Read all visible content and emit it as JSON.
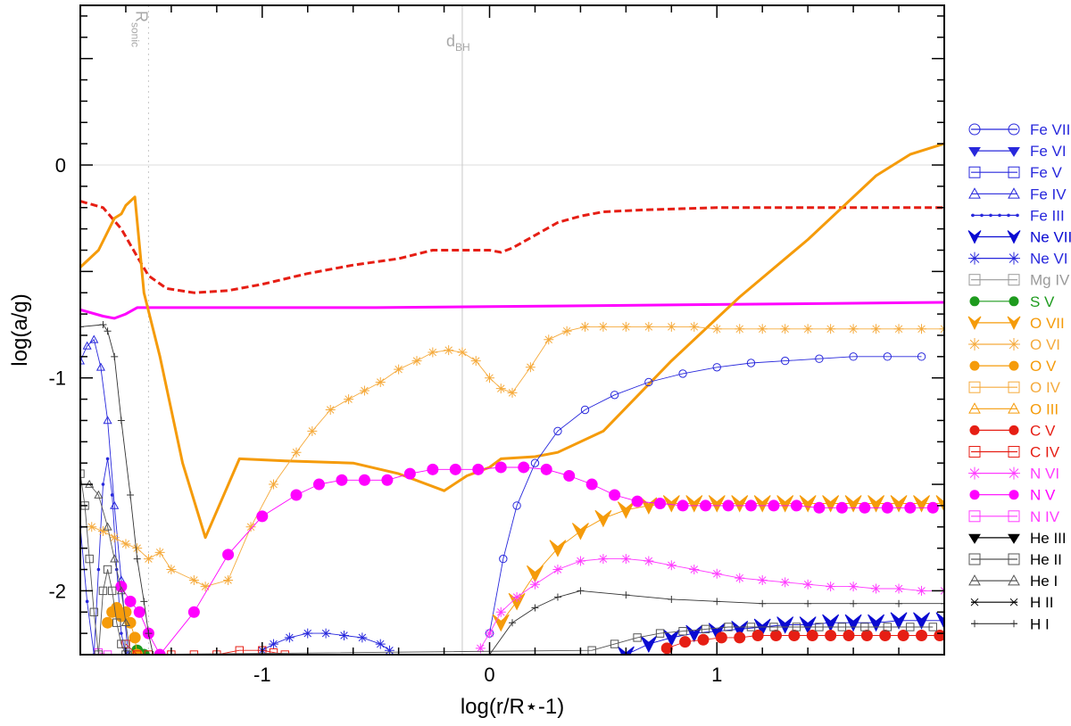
{
  "chart_data": {
    "type": "line",
    "xlabel": "log(r/R⋆-1)",
    "ylabel": "log(a/g)",
    "xlim": [
      -1.8,
      2.0
    ],
    "ylim": [
      -2.3,
      0.75
    ],
    "x_ticks": [
      -1,
      0,
      1
    ],
    "x_tick_labels": [
      "-1",
      "0",
      "1"
    ],
    "y_ticks": [
      -2,
      -1,
      0
    ],
    "y_tick_labels": [
      "-2",
      "-1",
      "0"
    ],
    "grid": false,
    "legend_position": "right",
    "annotations": [
      {
        "main": "R",
        "sub": "sonic",
        "x": -1.5,
        "style": "dotted",
        "rotated": true
      },
      {
        "main": "d",
        "sub": "BH",
        "x": -0.12,
        "style": "solid",
        "rotated": false
      }
    ],
    "series": [
      {
        "color": "#e61e14",
        "dash": "dashed",
        "marker": "none",
        "x": [
          -1.8,
          -1.7,
          -1.62,
          -1.55,
          -1.5,
          -1.42,
          -1.3,
          -1.15,
          -1.0,
          -0.8,
          -0.6,
          -0.4,
          -0.25,
          -0.1,
          0.0,
          0.05,
          0.1,
          0.2,
          0.3,
          0.4,
          0.5,
          0.7,
          1.0,
          1.3,
          1.6,
          2.0
        ],
        "y": [
          -0.17,
          -0.2,
          -0.3,
          -0.43,
          -0.52,
          -0.58,
          -0.6,
          -0.59,
          -0.56,
          -0.51,
          -0.47,
          -0.44,
          -0.4,
          -0.4,
          -0.4,
          -0.41,
          -0.39,
          -0.33,
          -0.27,
          -0.24,
          -0.22,
          -0.21,
          -0.2,
          -0.2,
          -0.2,
          -0.2
        ]
      },
      {
        "color": "#ff00ff",
        "dash": "solid",
        "marker": "none",
        "x": [
          -1.8,
          -1.7,
          -1.65,
          -1.6,
          -1.55,
          -1.4,
          -1.0,
          -0.5,
          0.0,
          0.5,
          1.0,
          1.5,
          2.0
        ],
        "y": [
          -0.68,
          -0.71,
          -0.72,
          -0.7,
          -0.67,
          -0.67,
          -0.67,
          -0.67,
          -0.665,
          -0.66,
          -0.655,
          -0.65,
          -0.645
        ]
      },
      {
        "color": "#f59b0a",
        "dash": "solid",
        "marker": "none",
        "x": [
          -1.8,
          -1.72,
          -1.65,
          -1.62,
          -1.6,
          -1.58,
          -1.56,
          -1.52,
          -1.45,
          -1.35,
          -1.25,
          -1.1,
          -0.9,
          -0.6,
          -0.4,
          -0.2,
          -0.1,
          0.0,
          0.05,
          0.2,
          0.3,
          0.5,
          0.8,
          1.1,
          1.4,
          1.7,
          1.85,
          2.0
        ],
        "y": [
          -0.48,
          -0.4,
          -0.25,
          -0.23,
          -0.19,
          -0.17,
          -0.15,
          -0.6,
          -0.9,
          -1.4,
          -1.75,
          -1.38,
          -1.39,
          -1.4,
          -1.45,
          -1.53,
          -1.46,
          -1.42,
          -1.38,
          -1.37,
          -1.35,
          -1.25,
          -0.92,
          -0.62,
          -0.35,
          -0.05,
          0.05,
          0.1
        ]
      },
      {
        "name": "Fe VII",
        "color": "#2828dc",
        "dash": "solid",
        "marker": "circle",
        "x": [
          0.0,
          0.06,
          0.12,
          0.2,
          0.3,
          0.42,
          0.55,
          0.7,
          0.85,
          1.0,
          1.15,
          1.3,
          1.45,
          1.6,
          1.75,
          1.9
        ],
        "y": [
          -2.2,
          -1.85,
          -1.6,
          -1.4,
          -1.25,
          -1.15,
          -1.08,
          -1.02,
          -0.98,
          -0.95,
          -0.93,
          -0.92,
          -0.91,
          -0.9,
          -0.9,
          -0.9
        ]
      },
      {
        "name": "Fe VI",
        "color": "#2828dc",
        "dash": "solid",
        "marker": "tri-down",
        "x": [],
        "y": []
      },
      {
        "name": "Fe V",
        "color": "#2828dc",
        "dash": "solid",
        "marker": "square",
        "x": [],
        "y": []
      },
      {
        "name": "Fe IV",
        "color": "#2828dc",
        "dash": "solid",
        "marker": "tri-up",
        "x": [
          -1.8,
          -1.77,
          -1.74,
          -1.71,
          -1.68,
          -1.65,
          -1.62,
          -1.59
        ],
        "y": [
          -0.92,
          -0.85,
          -0.82,
          -0.95,
          -1.2,
          -1.6,
          -1.95,
          -2.3
        ]
      },
      {
        "name": "Fe III",
        "color": "#2828dc",
        "dash": "solid",
        "marker": "dot",
        "x": [
          -1.8,
          -1.77,
          -1.74,
          -1.72,
          -1.7,
          -1.68,
          -1.66,
          -1.64,
          -1.62,
          -1.6
        ],
        "y": [
          -1.7,
          -2.05,
          -2.3,
          -1.9,
          -1.5,
          -1.38,
          -1.55,
          -1.9,
          -2.2,
          -2.3
        ]
      },
      {
        "name": "Ne VII",
        "color": "#0a0ad2",
        "dash": "solid",
        "marker": "arrow",
        "x": [
          0.6,
          0.7,
          0.8,
          0.9,
          1.0,
          1.1,
          1.2,
          1.3,
          1.4,
          1.5,
          1.6,
          1.7,
          1.8,
          1.9,
          2.0
        ],
        "y": [
          -2.3,
          -2.25,
          -2.22,
          -2.2,
          -2.19,
          -2.18,
          -2.17,
          -2.16,
          -2.16,
          -2.15,
          -2.15,
          -2.15,
          -2.14,
          -2.14,
          -2.14
        ]
      },
      {
        "name": "Ne VI",
        "color": "#2828dc",
        "dash": "solid",
        "marker": "asterisk",
        "x": [
          -1.0,
          -0.95,
          -0.88,
          -0.8,
          -0.72,
          -0.64,
          -0.56,
          -0.48,
          -0.44
        ],
        "y": [
          -2.28,
          -2.25,
          -2.22,
          -2.2,
          -2.2,
          -2.21,
          -2.22,
          -2.25,
          -2.28
        ]
      },
      {
        "name": "Mg IV",
        "color": "#9a9a9a",
        "dash": "solid",
        "marker": "square",
        "x": [],
        "y": []
      },
      {
        "name": "S V",
        "color": "#1e9b1e",
        "dash": "solid",
        "marker": "circle-filled",
        "x": [
          -1.55,
          -1.52
        ],
        "y": [
          -2.28,
          -2.3
        ]
      },
      {
        "name": "O VII",
        "color": "#f59b0a",
        "dash": "solid",
        "marker": "arrow",
        "x": [
          0.05,
          0.12,
          0.2,
          0.3,
          0.4,
          0.5,
          0.6,
          0.7,
          0.8,
          0.9,
          1.0,
          1.1,
          1.2,
          1.3,
          1.4,
          1.5,
          1.6,
          1.7,
          1.8,
          1.9,
          2.0
        ],
        "y": [
          -2.15,
          -2.05,
          -1.92,
          -1.8,
          -1.72,
          -1.66,
          -1.62,
          -1.6,
          -1.59,
          -1.59,
          -1.59,
          -1.59,
          -1.59,
          -1.59,
          -1.59,
          -1.59,
          -1.59,
          -1.59,
          -1.59,
          -1.59,
          -1.59
        ]
      },
      {
        "name": "O VI",
        "color": "#f5aa3c",
        "dash": "solid",
        "marker": "asterisk",
        "x": [
          -1.75,
          -1.7,
          -1.65,
          -1.6,
          -1.55,
          -1.5,
          -1.45,
          -1.4,
          -1.3,
          -1.25,
          -1.15,
          -1.05,
          -0.95,
          -0.85,
          -0.78,
          -0.7,
          -0.62,
          -0.55,
          -0.48,
          -0.4,
          -0.32,
          -0.25,
          -0.18,
          -0.12,
          -0.06,
          0.0,
          0.05,
          0.1,
          0.18,
          0.26,
          0.34,
          0.42,
          0.5,
          0.6,
          0.7,
          0.8,
          0.9,
          1.0,
          1.1,
          1.2,
          1.3,
          1.4,
          1.5,
          1.6,
          1.7,
          1.8,
          1.9,
          2.0
        ],
        "y": [
          -1.7,
          -1.72,
          -1.75,
          -1.78,
          -1.8,
          -1.85,
          -1.82,
          -1.9,
          -1.95,
          -1.98,
          -1.95,
          -1.7,
          -1.5,
          -1.35,
          -1.25,
          -1.15,
          -1.1,
          -1.06,
          -1.02,
          -0.96,
          -0.92,
          -0.88,
          -0.87,
          -0.88,
          -0.92,
          -1.0,
          -1.05,
          -1.07,
          -0.95,
          -0.82,
          -0.78,
          -0.76,
          -0.76,
          -0.76,
          -0.76,
          -0.76,
          -0.76,
          -0.77,
          -0.77,
          -0.77,
          -0.77,
          -0.77,
          -0.77,
          -0.77,
          -0.77,
          -0.77,
          -0.77,
          -0.77
        ]
      },
      {
        "name": "O V",
        "color": "#f59b0a",
        "dash": "solid",
        "marker": "circle-filled",
        "x": [
          -1.68,
          -1.66,
          -1.64,
          -1.62,
          -1.6,
          -1.58,
          -1.56,
          -1.55
        ],
        "y": [
          -2.15,
          -2.1,
          -2.08,
          -2.12,
          -2.1,
          -2.15,
          -2.22,
          -2.3
        ]
      },
      {
        "name": "O IV",
        "color": "#f5aa3c",
        "dash": "solid",
        "marker": "square",
        "x": [],
        "y": []
      },
      {
        "name": "O III",
        "color": "#f59b0a",
        "dash": "solid",
        "marker": "tri-up",
        "x": [],
        "y": []
      },
      {
        "name": "C V",
        "color": "#e61e14",
        "dash": "solid",
        "marker": "circle-filled",
        "x": [
          0.78,
          0.86,
          0.94,
          1.02,
          1.1,
          1.18,
          1.26,
          1.34,
          1.42,
          1.5,
          1.58,
          1.66,
          1.74,
          1.82,
          1.9,
          1.98
        ],
        "y": [
          -2.27,
          -2.24,
          -2.23,
          -2.22,
          -2.22,
          -2.21,
          -2.21,
          -2.21,
          -2.21,
          -2.21,
          -2.21,
          -2.21,
          -2.21,
          -2.21,
          -2.21,
          -2.21
        ]
      },
      {
        "name": "C IV",
        "color": "#e61e14",
        "dash": "solid",
        "marker": "square",
        "x": [
          -1.6,
          -1.55,
          -1.5,
          -1.4,
          -1.3,
          -1.2,
          -1.1,
          -1.0,
          -0.95,
          -0.9
        ],
        "y": [
          -2.25,
          -2.3,
          -2.3,
          -2.3,
          -2.3,
          -2.3,
          -2.28,
          -2.28,
          -2.29,
          -2.3
        ]
      },
      {
        "name": "N VI",
        "color": "#ff3cff",
        "dash": "solid",
        "marker": "asterisk",
        "x": [
          -0.04,
          0.0,
          0.05,
          0.12,
          0.2,
          0.3,
          0.4,
          0.5,
          0.6,
          0.7,
          0.8,
          0.9,
          1.0,
          1.1,
          1.2,
          1.3,
          1.4,
          1.5,
          1.6,
          1.7,
          1.8,
          1.9,
          2.0
        ],
        "y": [
          -2.27,
          -2.2,
          -2.1,
          -2.03,
          -1.97,
          -1.9,
          -1.86,
          -1.85,
          -1.85,
          -1.86,
          -1.88,
          -1.9,
          -1.92,
          -1.94,
          -1.95,
          -1.96,
          -1.97,
          -1.98,
          -1.98,
          -1.99,
          -1.99,
          -2.0,
          -2.0
        ]
      },
      {
        "name": "N V",
        "color": "#ff00ff",
        "dash": "solid",
        "marker": "circle-filled",
        "x": [
          -1.62,
          -1.58,
          -1.54,
          -1.5,
          -1.45,
          -1.3,
          -1.15,
          -1.0,
          -0.85,
          -0.75,
          -0.65,
          -0.55,
          -0.45,
          -0.35,
          -0.25,
          -0.15,
          -0.05,
          0.05,
          0.15,
          0.25,
          0.35,
          0.45,
          0.55,
          0.65,
          0.75,
          0.85,
          0.95,
          1.05,
          1.15,
          1.25,
          1.35,
          1.45,
          1.55,
          1.65,
          1.75,
          1.85,
          1.95
        ],
        "y": [
          -1.98,
          -2.05,
          -2.1,
          -2.2,
          -2.3,
          -2.1,
          -1.83,
          -1.65,
          -1.55,
          -1.5,
          -1.48,
          -1.48,
          -1.48,
          -1.45,
          -1.43,
          -1.43,
          -1.43,
          -1.42,
          -1.42,
          -1.43,
          -1.46,
          -1.5,
          -1.55,
          -1.58,
          -1.59,
          -1.6,
          -1.6,
          -1.6,
          -1.6,
          -1.6,
          -1.6,
          -1.61,
          -1.61,
          -1.61,
          -1.61,
          -1.61,
          -1.61
        ]
      },
      {
        "name": "N IV",
        "color": "#ff3cff",
        "dash": "solid",
        "marker": "square",
        "x": [
          -1.72,
          -1.68
        ],
        "y": [
          -2.29,
          -2.3
        ]
      },
      {
        "name": "He III",
        "color": "#000000",
        "dash": "solid",
        "marker": "tri-down",
        "x": [],
        "y": []
      },
      {
        "name": "He II",
        "color": "#555555",
        "dash": "solid",
        "marker": "square",
        "x": [
          -1.8,
          -1.78,
          -1.76,
          -1.74,
          -1.72,
          -1.7,
          -1.68,
          -1.66,
          -1.64,
          -1.62,
          -1.6,
          0.45,
          0.55,
          0.65,
          0.75,
          0.85,
          0.95,
          1.05,
          1.15,
          1.25,
          1.35,
          1.45,
          1.55,
          1.65,
          1.75,
          1.85,
          1.95
        ],
        "y": [
          -1.45,
          -1.6,
          -1.85,
          -2.1,
          -2.3,
          -2.0,
          -1.9,
          -2.0,
          -2.15,
          -2.25,
          -2.3,
          -2.28,
          -2.25,
          -2.22,
          -2.2,
          -2.19,
          -2.18,
          -2.17,
          -2.17,
          -2.17,
          -2.17,
          -2.17,
          -2.17,
          -2.17,
          -2.17,
          -2.17,
          -2.17
        ]
      },
      {
        "name": "He I",
        "color": "#555555",
        "dash": "solid",
        "marker": "tri-up",
        "x": [
          -1.76,
          -1.72,
          -1.68,
          -1.65,
          -1.62,
          -1.6,
          -1.58
        ],
        "y": [
          -1.5,
          -1.55,
          -1.7,
          -1.85,
          -2.0,
          -2.15,
          -2.3
        ]
      },
      {
        "name": "H II",
        "color": "#000000",
        "dash": "solid",
        "marker": "cross",
        "x": [],
        "y": []
      },
      {
        "name": "H I",
        "color": "#333333",
        "dash": "solid",
        "marker": "plus",
        "x": [
          -1.8,
          -1.7,
          -1.68,
          -1.65,
          -1.62,
          -1.58,
          -1.55,
          -1.52,
          -1.5,
          -1.48,
          0.0,
          0.1,
          0.2,
          0.3,
          0.4,
          0.6,
          0.8,
          1.0,
          1.2,
          1.4,
          1.6,
          1.8,
          2.0
        ],
        "y": [
          -0.76,
          -0.75,
          -0.78,
          -0.9,
          -1.2,
          -1.55,
          -1.85,
          -2.05,
          -2.2,
          -2.3,
          -2.3,
          -2.15,
          -2.08,
          -2.03,
          -2.0,
          -2.02,
          -2.04,
          -2.05,
          -2.06,
          -2.06,
          -2.06,
          -2.06,
          -2.06
        ]
      }
    ]
  }
}
